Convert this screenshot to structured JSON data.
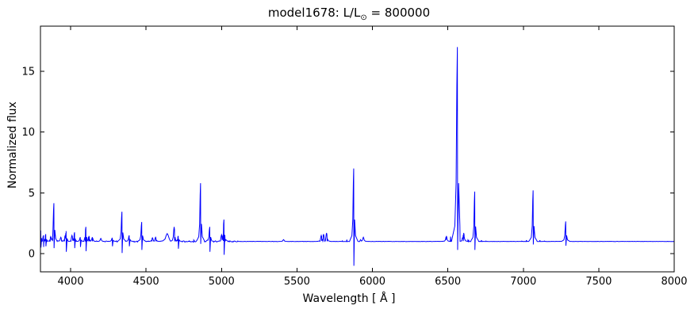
{
  "figure": {
    "title_prefix": "model1678: L/L",
    "title_sub": "⊙",
    "title_suffix": " = 800000",
    "xlabel": "Wavelength [ Å ]",
    "ylabel": "Normalized flux"
  },
  "chart_data": {
    "type": "line",
    "title": "model1678: L/L⊙ = 800000",
    "xlabel": "Wavelength [ Å ]",
    "ylabel": "Normalized flux",
    "xlim": [
      3800,
      8000
    ],
    "ylim": [
      -1.5,
      18.72
    ],
    "xticks": [
      4000,
      4500,
      5000,
      5500,
      6000,
      6500,
      7000,
      7500,
      8000
    ],
    "yticks": [
      0,
      5,
      10,
      15
    ],
    "grid": false,
    "legend": null,
    "line_color": "#0000ff",
    "background_color": "#ffffff",
    "continuum_level": 1.0,
    "noise_regions": [
      {
        "from": 3800,
        "to": 5110,
        "amp": 0.055
      },
      {
        "from": 5110,
        "to": 6440,
        "amp": 0.012
      },
      {
        "from": 6440,
        "to": 8000,
        "amp": 0.01
      }
    ],
    "emission_lines": [
      {
        "wl": 3802,
        "peak": 1.9,
        "dip": 0.5
      },
      {
        "wl": 3820,
        "peak": 1.5,
        "dip": 0.55
      },
      {
        "wl": 3835,
        "peak": 1.6,
        "dip": 0.6
      },
      {
        "wl": 3868,
        "peak": 1.4
      },
      {
        "wl": 3889,
        "peak": 4.15,
        "dip": 0.45
      },
      {
        "wl": 3935,
        "peak": 1.35
      },
      {
        "wl": 3964,
        "peak": 1.5
      },
      {
        "wl": 3970,
        "peak": 1.85,
        "dip": 0.15
      },
      {
        "wl": 4009,
        "peak": 1.5
      },
      {
        "wl": 4026,
        "peak": 1.75,
        "dip": 0.45
      },
      {
        "wl": 4064,
        "peak": 1.35,
        "dip": 0.55
      },
      {
        "wl": 4101,
        "peak": 2.2,
        "dip": 0.2
      },
      {
        "wl": 4121,
        "peak": 1.45
      },
      {
        "wl": 4144,
        "peak": 1.35
      },
      {
        "wl": 4200,
        "peak": 1.25
      },
      {
        "wl": 4276,
        "peak": 1.3,
        "dip": 0.6
      },
      {
        "wl": 4340,
        "peak": 3.45,
        "dip": 0.05
      },
      {
        "wl": 4388,
        "peak": 1.5,
        "dip": 0.6
      },
      {
        "wl": 4471,
        "peak": 2.6,
        "dip": 0.3
      },
      {
        "wl": 4542,
        "peak": 1.3
      },
      {
        "wl": 4563,
        "peak": 1.35
      },
      {
        "wl": 4640,
        "peak": 1.65,
        "width": 12
      },
      {
        "wl": 4686,
        "peak": 2.2
      },
      {
        "wl": 4713,
        "peak": 1.45,
        "dip": 0.4
      },
      {
        "wl": 4861,
        "peak": 5.8,
        "dip": 0.8
      },
      {
        "wl": 4922,
        "peak": 2.2,
        "dip": 0.15
      },
      {
        "wl": 5000,
        "peak": 1.55
      },
      {
        "wl": 5016,
        "peak": 2.8,
        "dip": -0.1
      },
      {
        "wl": 5411,
        "peak": 1.15
      },
      {
        "wl": 5661,
        "peak": 1.5
      },
      {
        "wl": 5676,
        "peak": 1.6
      },
      {
        "wl": 5696,
        "peak": 1.7
      },
      {
        "wl": 5876,
        "peak": 7.0,
        "dip": -1.0
      },
      {
        "wl": 5940,
        "peak": 1.35
      },
      {
        "wl": 6490,
        "peak": 1.45
      },
      {
        "wl": 6563,
        "peak": 17.0,
        "dip": 0.3,
        "width": 7
      },
      {
        "wl": 6605,
        "peak": 1.7
      },
      {
        "wl": 6678,
        "peak": 5.1,
        "dip": 0.3
      },
      {
        "wl": 7065,
        "peak": 5.2,
        "dip": 0.75
      },
      {
        "wl": 7281,
        "peak": 2.65,
        "dip": 0.65
      }
    ]
  }
}
